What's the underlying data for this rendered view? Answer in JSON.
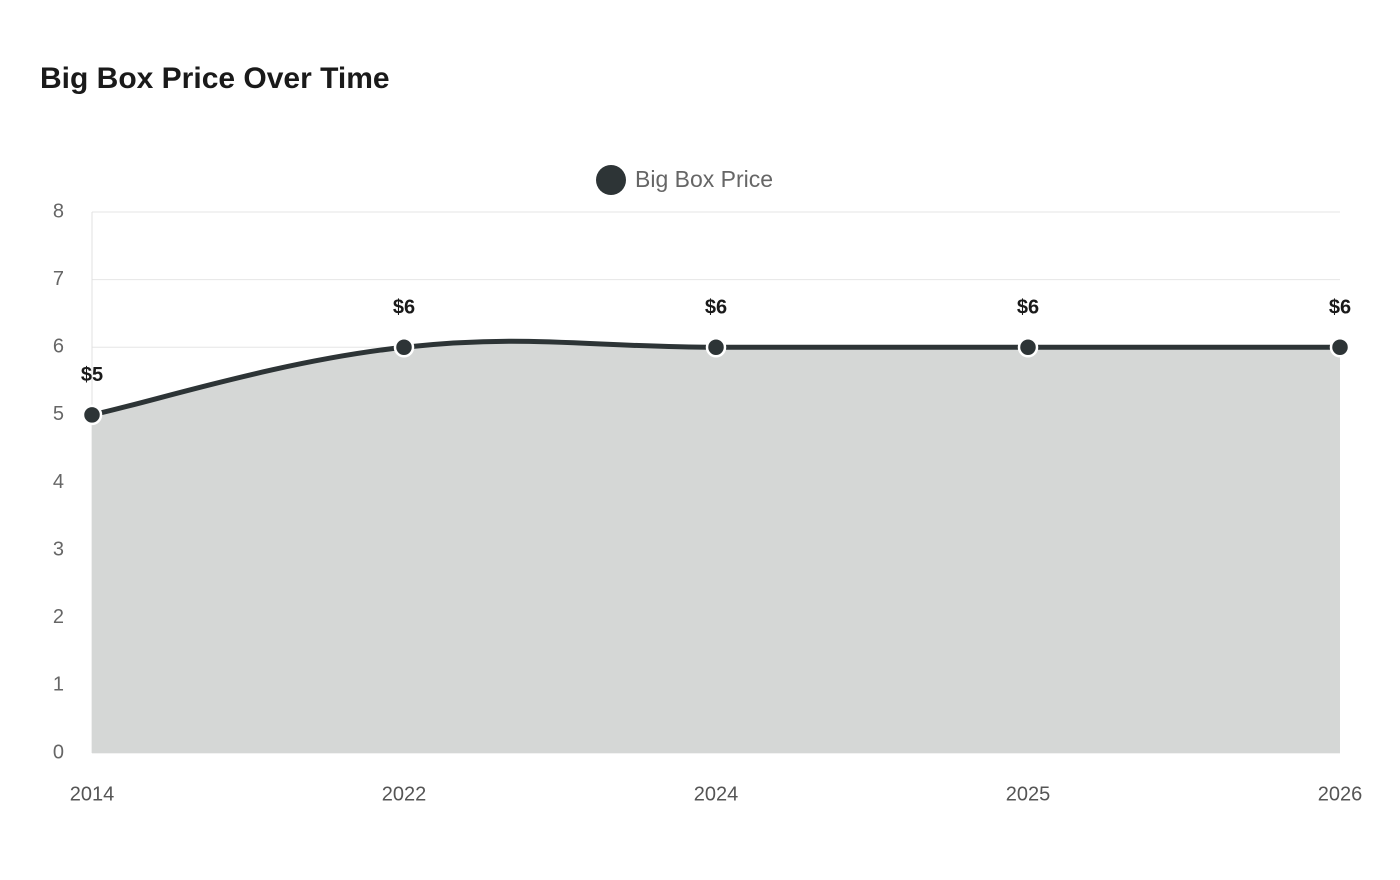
{
  "chart_data": {
    "type": "line",
    "title": "Big Box Price Over Time",
    "categories": [
      "2014",
      "2022",
      "2024",
      "2025",
      "2026"
    ],
    "series": [
      {
        "name": "Big Box Price",
        "color": "#2d3436",
        "fill": "#d5d7d6",
        "values": [
          5,
          6,
          6,
          6,
          6
        ],
        "value_labels": [
          "$5",
          "$6",
          "$6",
          "$6",
          "$6"
        ]
      }
    ],
    "ylim": [
      0,
      8
    ],
    "yticks": [
      0,
      1,
      2,
      3,
      4,
      5,
      6,
      7,
      8
    ],
    "grid": true,
    "legend": "top"
  }
}
